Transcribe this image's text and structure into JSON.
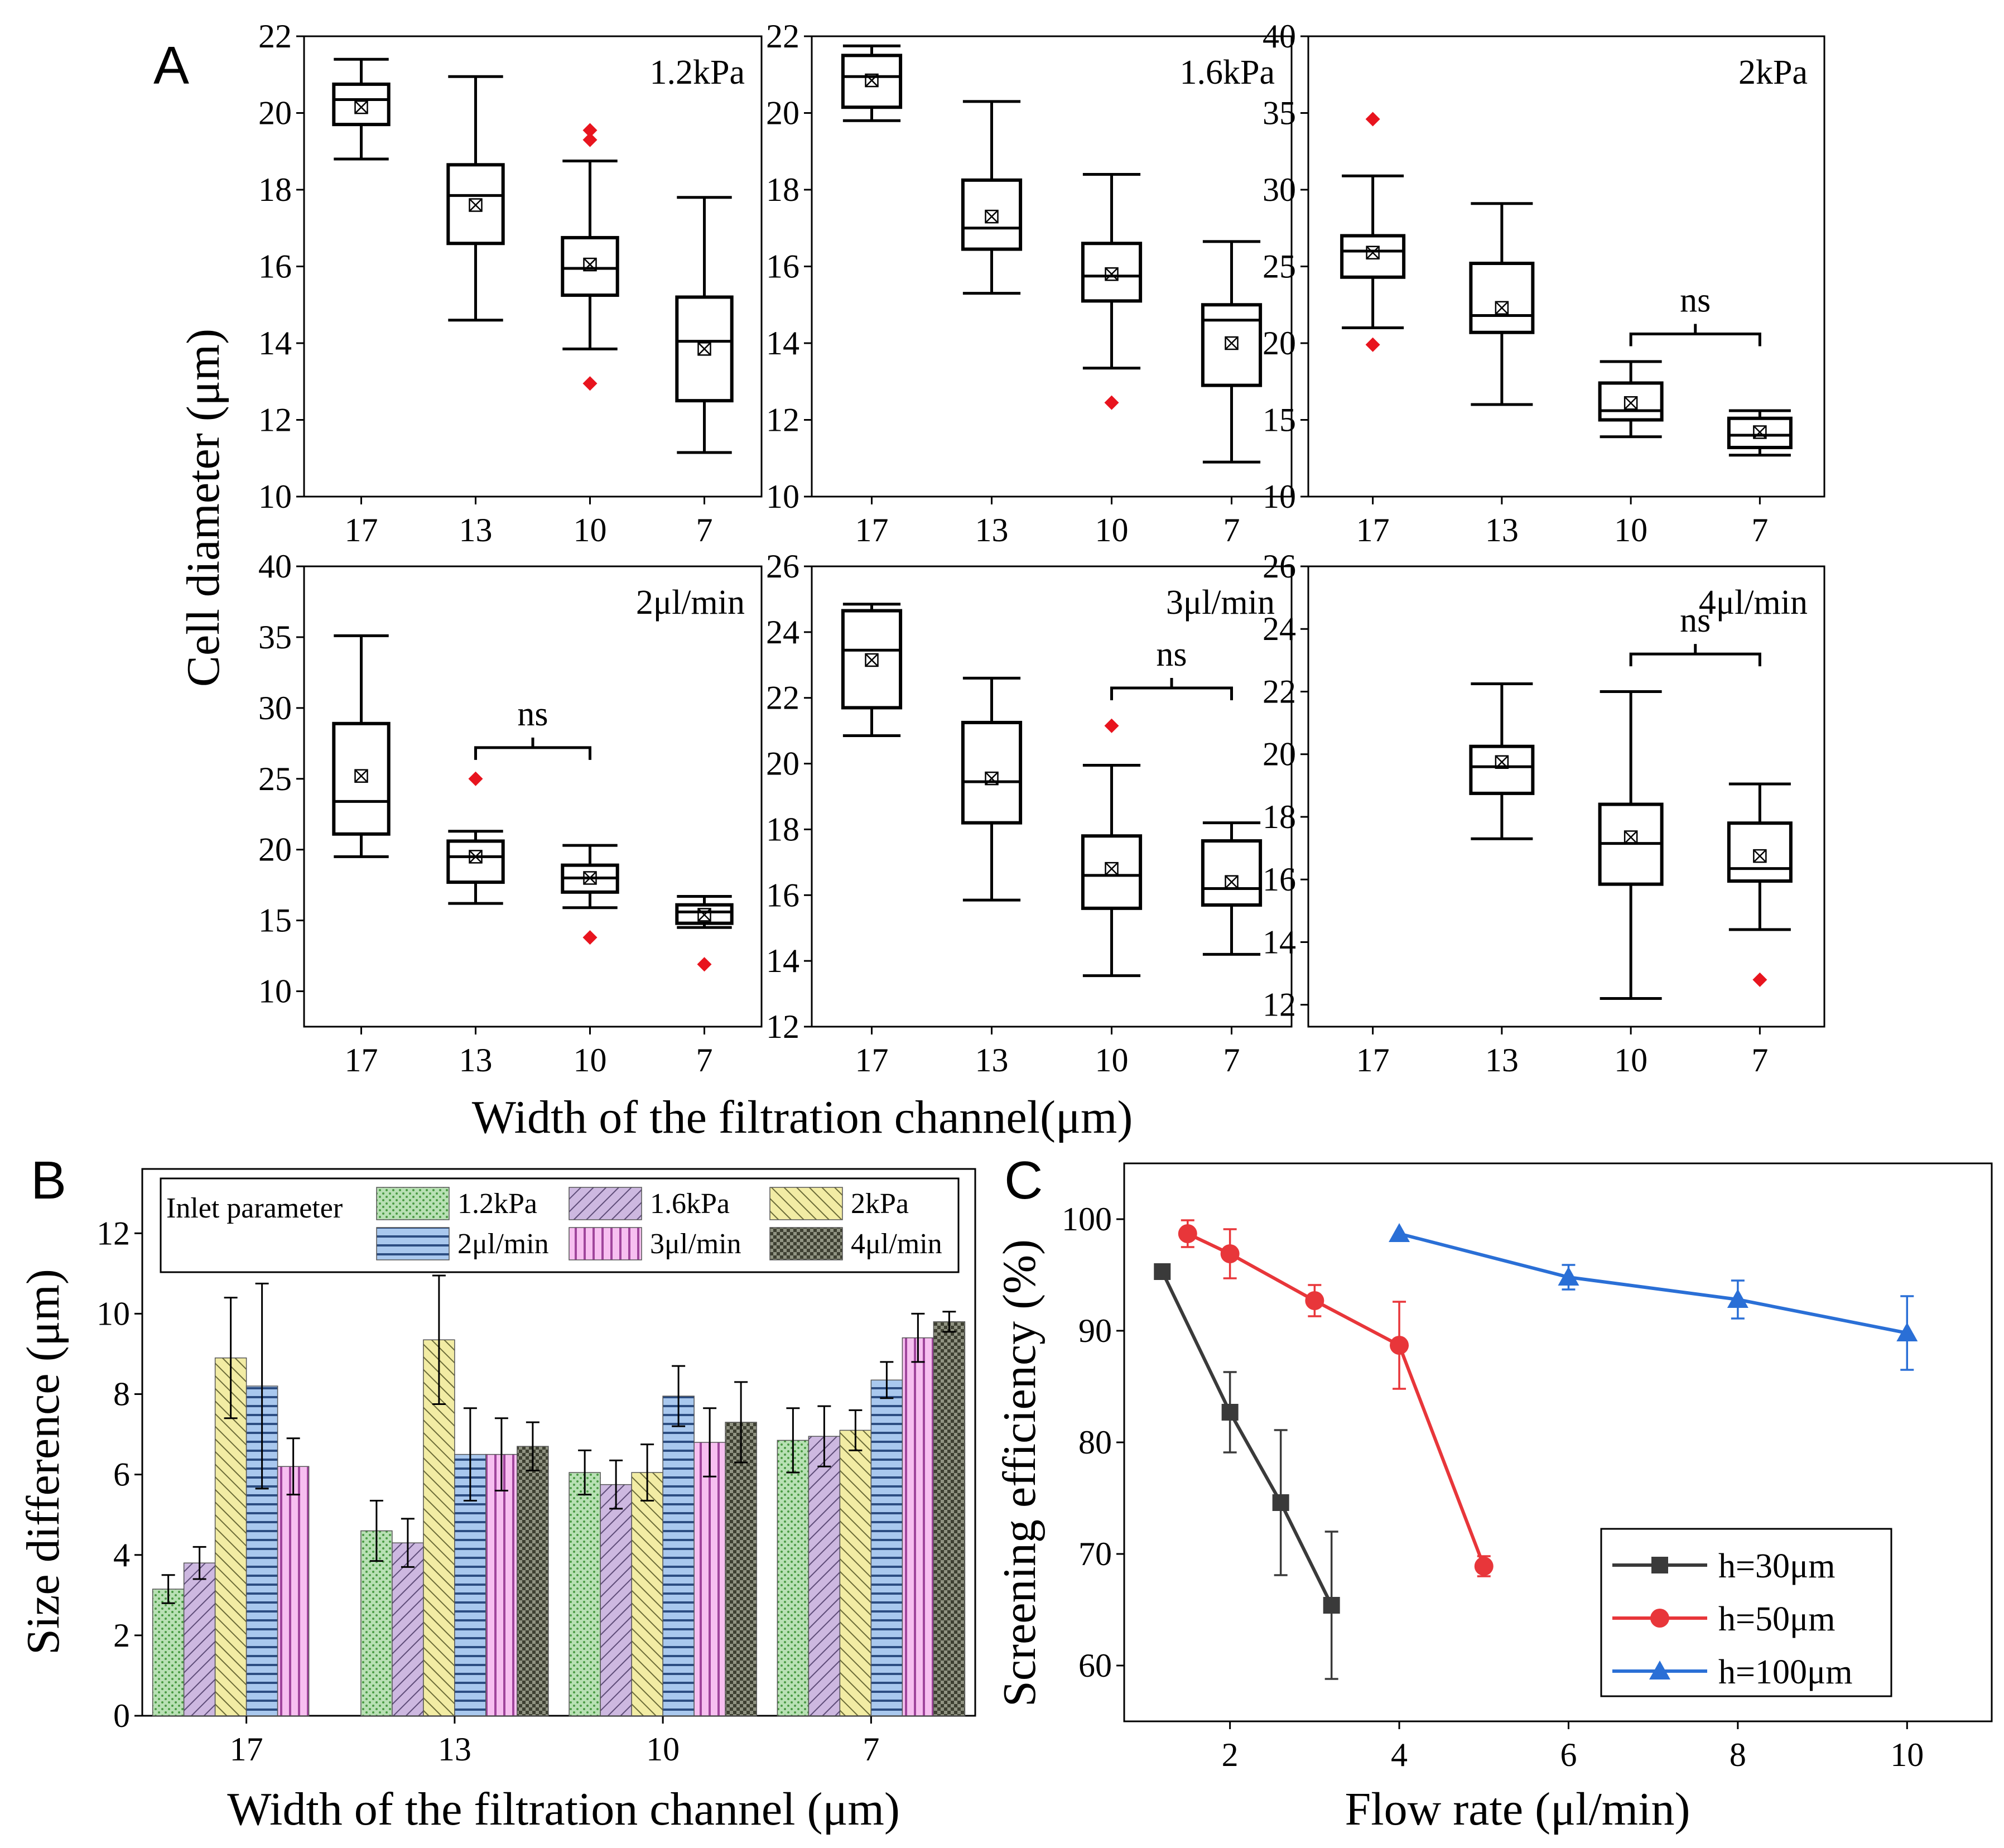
{
  "figure": {
    "panel_labels": [
      "A",
      "B",
      "C"
    ],
    "colors": {
      "outlier": "#e8141e",
      "axis": "#000000",
      "bar_1_2kPa": "#b8e0b4",
      "bar_1_6kPa": "#cdb8e0",
      "bar_2kPa": "#f2eca4",
      "bar_2ul": "#a9c8ee",
      "bar_3ul": "#f7bff0",
      "bar_4ul": "#909382",
      "line_h30": "#3a3a3a",
      "line_h50": "#e8363a",
      "line_h100": "#2a6fd6"
    }
  },
  "chart_data": [
    {
      "type": "boxplot",
      "panel": "A",
      "ylabel": "Cell diameter (μm)",
      "xlabel": "Width of the filtration channel(μm)",
      "categories": [
        "17",
        "13",
        "10",
        "7"
      ],
      "subplots": [
        {
          "label": "1.2kPa",
          "ylim": [
            10,
            22
          ],
          "yticks": [
            "10",
            "12",
            "14",
            "16",
            "18",
            "20",
            "22"
          ],
          "boxes": [
            {
              "cat": "17",
              "min": 18.8,
              "q1": 19.7,
              "median": 20.35,
              "q3": 20.75,
              "max": 21.4,
              "mean": 20.15,
              "outliers": []
            },
            {
              "cat": "13",
              "min": 14.6,
              "q1": 16.6,
              "median": 17.85,
              "q3": 18.65,
              "max": 20.95,
              "mean": 17.6,
              "outliers": []
            },
            {
              "cat": "10",
              "min": 13.85,
              "q1": 15.25,
              "median": 15.95,
              "q3": 16.75,
              "max": 18.75,
              "mean": 16.05,
              "outliers": [
                19.55,
                19.3,
                12.95
              ]
            },
            {
              "cat": "7",
              "min": 11.15,
              "q1": 12.5,
              "median": 14.05,
              "q3": 15.2,
              "max": 17.8,
              "mean": 13.85,
              "outliers": []
            }
          ],
          "annotations": []
        },
        {
          "label": "1.6kPa",
          "ylim": [
            10,
            22
          ],
          "yticks": [
            "10",
            "12",
            "14",
            "16",
            "18",
            "20",
            "22"
          ],
          "boxes": [
            {
              "cat": "17",
              "min": 19.8,
              "q1": 20.15,
              "median": 20.95,
              "q3": 21.5,
              "max": 21.75,
              "mean": 20.85,
              "outliers": []
            },
            {
              "cat": "13",
              "min": 15.3,
              "q1": 16.45,
              "median": 17.0,
              "q3": 18.25,
              "max": 20.3,
              "mean": 17.3,
              "outliers": []
            },
            {
              "cat": "10",
              "min": 13.35,
              "q1": 15.1,
              "median": 15.75,
              "q3": 16.6,
              "max": 18.4,
              "mean": 15.8,
              "outliers": [
                12.45
              ]
            },
            {
              "cat": "7",
              "min": 10.9,
              "q1": 12.9,
              "median": 14.6,
              "q3": 15.0,
              "max": 16.65,
              "mean": 14.0,
              "outliers": []
            }
          ],
          "annotations": []
        },
        {
          "label": "2kPa",
          "ylim": [
            10,
            40
          ],
          "yticks": [
            "10",
            "15",
            "20",
            "25",
            "30",
            "35",
            "40"
          ],
          "boxes": [
            {
              "cat": "17",
              "min": 21.0,
              "q1": 24.3,
              "median": 26.0,
              "q3": 27.0,
              "max": 30.9,
              "mean": 25.9,
              "outliers": [
                34.6,
                19.9
              ]
            },
            {
              "cat": "13",
              "min": 16.0,
              "q1": 20.7,
              "median": 21.8,
              "q3": 25.2,
              "max": 29.1,
              "mean": 22.3,
              "outliers": []
            },
            {
              "cat": "10",
              "min": 13.9,
              "q1": 15.0,
              "median": 15.6,
              "q3": 17.4,
              "max": 18.8,
              "mean": 16.1,
              "outliers": []
            },
            {
              "cat": "7",
              "min": 12.7,
              "q1": 13.2,
              "median": 14.0,
              "q3": 15.1,
              "max": 15.6,
              "mean": 14.2,
              "outliers": []
            }
          ],
          "annotations": [
            {
              "text": "ns",
              "from": "10",
              "to": "7",
              "y": 20.6
            }
          ]
        },
        {
          "label": "2μl/min",
          "ylim": [
            7.5,
            40
          ],
          "yticks": [
            "10",
            "15",
            "20",
            "25",
            "30",
            "35",
            "40"
          ],
          "boxes": [
            {
              "cat": "17",
              "min": 19.5,
              "q1": 21.1,
              "median": 23.4,
              "q3": 28.9,
              "max": 35.1,
              "mean": 25.2,
              "outliers": []
            },
            {
              "cat": "13",
              "min": 16.2,
              "q1": 17.7,
              "median": 19.5,
              "q3": 20.6,
              "max": 21.3,
              "mean": 19.5,
              "outliers": [
                25.0
              ]
            },
            {
              "cat": "10",
              "min": 15.9,
              "q1": 17.0,
              "median": 18.0,
              "q3": 18.9,
              "max": 20.3,
              "mean": 18.0,
              "outliers": [
                13.8
              ]
            },
            {
              "cat": "7",
              "min": 14.5,
              "q1": 14.8,
              "median": 15.6,
              "q3": 16.1,
              "max": 16.7,
              "mean": 15.4,
              "outliers": [
                11.9
              ]
            }
          ],
          "annotations": [
            {
              "text": "ns",
              "from": "13",
              "to": "10",
              "y": 27.2
            }
          ]
        },
        {
          "label": "3μl/min",
          "ylim": [
            12,
            26
          ],
          "yticks": [
            "12",
            "14",
            "16",
            "18",
            "20",
            "22",
            "24",
            "26"
          ],
          "boxes": [
            {
              "cat": "17",
              "min": 20.85,
              "q1": 21.7,
              "median": 23.45,
              "q3": 24.65,
              "max": 24.85,
              "mean": 23.15,
              "outliers": []
            },
            {
              "cat": "13",
              "min": 15.85,
              "q1": 18.2,
              "median": 19.45,
              "q3": 21.25,
              "max": 22.6,
              "mean": 19.55,
              "outliers": []
            },
            {
              "cat": "10",
              "min": 13.55,
              "q1": 15.6,
              "median": 16.6,
              "q3": 17.8,
              "max": 19.95,
              "mean": 16.8,
              "outliers": [
                21.15
              ]
            },
            {
              "cat": "7",
              "min": 14.2,
              "q1": 15.7,
              "median": 16.2,
              "q3": 17.65,
              "max": 18.2,
              "mean": 16.4,
              "outliers": []
            }
          ],
          "annotations": [
            {
              "text": "ns",
              "from": "10",
              "to": "7",
              "y": 22.3
            }
          ]
        },
        {
          "label": "4μl/min",
          "ylim": [
            11.3,
            26
          ],
          "yticks": [
            "12",
            "14",
            "16",
            "18",
            "20",
            "22",
            "24",
            "26"
          ],
          "boxes": [
            {
              "cat": "13",
              "min": 17.3,
              "q1": 18.75,
              "median": 19.6,
              "q3": 20.25,
              "max": 22.25,
              "mean": 19.75,
              "outliers": []
            },
            {
              "cat": "10",
              "min": 12.2,
              "q1": 15.85,
              "median": 17.15,
              "q3": 18.4,
              "max": 22.0,
              "mean": 17.35,
              "outliers": []
            },
            {
              "cat": "7",
              "min": 14.4,
              "q1": 15.95,
              "median": 16.35,
              "q3": 17.8,
              "max": 19.05,
              "mean": 16.75,
              "outliers": [
                12.8
              ]
            }
          ],
          "annotations": [
            {
              "text": "ns",
              "from": "10",
              "to": "7",
              "y": 23.2
            }
          ]
        }
      ]
    },
    {
      "type": "bar",
      "panel": "B",
      "xlabel": "Width of the filtration channel (μm)",
      "ylabel": "Size difference (μm)",
      "ylim": [
        0,
        13.6
      ],
      "yticks": [
        "0",
        "2",
        "4",
        "6",
        "8",
        "10",
        "12"
      ],
      "categories": [
        "17",
        "13",
        "10",
        "7"
      ],
      "legend_title": "Inlet parameter",
      "series": [
        {
          "name": "1.2kPa",
          "values": [
            3.15,
            4.6,
            6.05,
            6.85
          ],
          "errors": [
            0.35,
            0.75,
            0.55,
            0.8
          ]
        },
        {
          "name": "1.6kPa",
          "values": [
            3.8,
            4.3,
            5.75,
            6.95
          ],
          "errors": [
            0.4,
            0.6,
            0.6,
            0.75
          ]
        },
        {
          "name": "2kPa",
          "values": [
            8.9,
            9.35,
            6.05,
            7.1
          ],
          "errors": [
            1.5,
            1.6,
            0.7,
            0.5
          ]
        },
        {
          "name": "2μl/min",
          "values": [
            8.2,
            6.5,
            7.95,
            8.35
          ],
          "errors": [
            2.55,
            1.15,
            0.75,
            0.45
          ]
        },
        {
          "name": "3μl/min",
          "values": [
            6.2,
            6.5,
            6.8,
            9.4
          ],
          "errors": [
            0.7,
            0.9,
            0.85,
            0.6
          ]
        },
        {
          "name": "4μl/min",
          "values": [
            null,
            6.7,
            7.3,
            9.8
          ],
          "errors": [
            null,
            0.6,
            1.0,
            0.25
          ]
        }
      ]
    },
    {
      "type": "line",
      "panel": "C",
      "xlabel": "Flow rate (μl/min)",
      "ylabel": "Screening efficiency (%)",
      "xlim": [
        0.75,
        11
      ],
      "ylim": [
        55,
        105
      ],
      "xticks": [
        "2",
        "4",
        "6",
        "8",
        "10"
      ],
      "yticks": [
        "60",
        "70",
        "80",
        "90",
        "100"
      ],
      "series": [
        {
          "name": "h=30μm",
          "marker": "square",
          "x": [
            1.2,
            2.0,
            2.6,
            3.2
          ],
          "y": [
            95.3,
            82.7,
            74.6,
            65.4
          ],
          "errors": [
            0,
            3.6,
            6.5,
            6.6
          ]
        },
        {
          "name": "h=50μm",
          "marker": "circle",
          "x": [
            1.5,
            2.0,
            3.0,
            4.0,
            5.0
          ],
          "y": [
            98.7,
            96.9,
            92.7,
            88.7,
            68.9
          ],
          "errors": [
            1.2,
            2.2,
            1.4,
            3.9,
            0.9
          ]
        },
        {
          "name": "h=100μm",
          "marker": "triangle",
          "x": [
            4.0,
            6.0,
            8.0,
            10.0
          ],
          "y": [
            98.7,
            94.8,
            92.8,
            89.8
          ],
          "errors": [
            0,
            1.1,
            1.7,
            3.3
          ]
        }
      ]
    }
  ]
}
